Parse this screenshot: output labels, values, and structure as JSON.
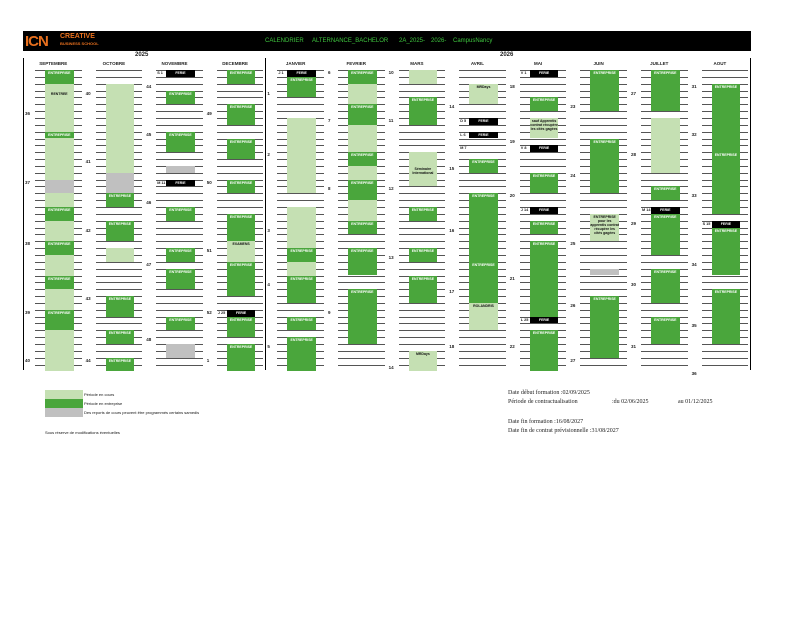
{
  "header": {
    "logo": "ICN",
    "logo_sub_1": "CREATIVE",
    "logo_sub_2": "BUSINESS SCHOOL",
    "title_1": "CALENDRIER",
    "title_2": "ALTERNANCE_BACHELOR",
    "title_3": "2A_2025-",
    "title_4": "2026-",
    "title_5": "CampusNancy"
  },
  "years": {
    "y1": "2025",
    "y2": "2026"
  },
  "months": [
    "SEPTEMBRE",
    "OCTOBRE",
    "NOVEMBRE",
    "DECEMBRE",
    "JANVIER",
    "FEVRIER",
    "MARS",
    "AVRIL",
    "MAI",
    "JUIN",
    "JUILLET",
    "AOUT"
  ],
  "labels": {
    "entreprise": "ENTREPRISE",
    "ferie": "FERIE",
    "rentree": "RENTREE",
    "examens": "EXAMENS",
    "seminaire": "Séminaire International",
    "mrdays": "MRDays",
    "rolandris": "ROLANDRIS",
    "ferie_note": "sauf Apprentis contrat récupère les cités gagées",
    "pentecote_note": "ENTREPRISE pour les apprentis contrat récupère les cités gagées"
  },
  "week_numbers": {
    "sep": [
      "36",
      "37",
      "38",
      "39",
      "40"
    ],
    "oct": [
      "40",
      "41",
      "42",
      "43",
      "44"
    ],
    "nov": [
      "44",
      "45",
      "46",
      "47",
      "48"
    ],
    "dec": [
      "49",
      "50",
      "51",
      "52",
      "1"
    ],
    "jan": [
      "1",
      "2",
      "3",
      "4",
      "5"
    ],
    "feb": [
      "6",
      "7",
      "8",
      "9"
    ],
    "mar": [
      "10",
      "11",
      "12",
      "13",
      "14"
    ],
    "apr": [
      "14",
      "15",
      "16",
      "17",
      "18"
    ],
    "may": [
      "18",
      "19",
      "20",
      "21",
      "22"
    ],
    "jun": [
      "23",
      "24",
      "25",
      "26",
      "27"
    ],
    "jul": [
      "27",
      "28",
      "29",
      "30",
      "31"
    ],
    "aug": [
      "31",
      "32",
      "33",
      "34",
      "35",
      "36"
    ]
  },
  "day_tags": {
    "nov1": "S 1",
    "nov11": "M 11",
    "dec25": "J 25",
    "jan1": "J 1",
    "may1": "V 1",
    "may8": "V 8",
    "apr5": "D 5",
    "apr6": "L 6",
    "apr7": "M 7",
    "may14": "J 14",
    "may25": "L 25",
    "jul14": "M 14",
    "aug15": "S 15"
  },
  "legend": {
    "item1": "Période en cours",
    "item2": "Période en entreprise",
    "item3": "Des reports de cours peuvent être programmés certains samedis",
    "note": "Sous réserve de modifications éventuelles",
    "colors": {
      "light": "#c5e0b3",
      "dark": "#4aa63c",
      "gray": "#c0c0c0"
    }
  },
  "info": {
    "l1": "Date début formation :02/09/2025",
    "l2a": "Période de contractualisation",
    "l2b": ":du 02/06/2025",
    "l2c": "au 01/12/2025",
    "l3": "Date fin formation :16/08/2027",
    "l4": "Date fin de contrat prévisionnelle :31/08/2027"
  }
}
